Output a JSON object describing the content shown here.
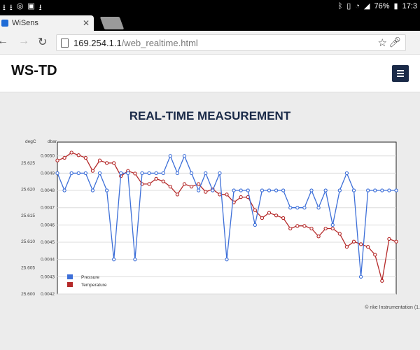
{
  "statusbar": {
    "left_icons": [
      "download-icon",
      "download-icon",
      "whatsapp-icon",
      "image-icon",
      "download-icon"
    ],
    "battery": "76%",
    "time": "17:3"
  },
  "tab": {
    "title": "WiSens"
  },
  "address": {
    "host": "169.254.1.1",
    "path": "/web_realtime.html"
  },
  "site": {
    "brand": "WS-TD"
  },
  "page": {
    "heading": "REAL-TIME MEASUREMENT",
    "credit": "© nke Instrumentation (1."
  },
  "chart_data": {
    "type": "line",
    "left_axis_unit": "degC",
    "right_axis_unit": "dbar",
    "left_ticks": [
      "25.600",
      "25.605",
      "25.610",
      "25.615",
      "25.620",
      "25.625"
    ],
    "right_ticks": [
      "0.0042",
      "0.0043",
      "0.0044",
      "0.0045",
      "0.0046",
      "0.0047",
      "0.0048",
      "0.0049",
      "0.0050"
    ],
    "temp_range": [
      25.6,
      25.629
    ],
    "pres_range": [
      0.0042,
      0.00508
    ],
    "legend_position": "bottom-left",
    "series": [
      {
        "name": "Pressure",
        "axis": "dbar",
        "color": "#3d6fd8",
        "values": [
          0.0049,
          0.0048,
          0.0049,
          0.0049,
          0.0049,
          0.0048,
          0.0049,
          0.0048,
          0.0044,
          0.0049,
          0.0049,
          0.0044,
          0.0049,
          0.0049,
          0.0049,
          0.0049,
          0.005,
          0.0049,
          0.005,
          0.0049,
          0.0048,
          0.0049,
          0.0048,
          0.0049,
          0.0044,
          0.0048,
          0.0048,
          0.0048,
          0.0046,
          0.0048,
          0.0048,
          0.0048,
          0.0048,
          0.0047,
          0.0047,
          0.0047,
          0.0048,
          0.0047,
          0.0048,
          0.0046,
          0.0048,
          0.0049,
          0.0048,
          0.0043,
          0.0048,
          0.0048,
          0.0048,
          0.0048,
          0.0048
        ]
      },
      {
        "name": "Temperature",
        "axis": "degC",
        "color": "#b52a2a",
        "values": [
          25.6255,
          25.626,
          25.627,
          25.6265,
          25.626,
          25.6235,
          25.6255,
          25.625,
          25.625,
          25.6225,
          25.6235,
          25.623,
          25.621,
          25.621,
          25.622,
          25.6215,
          25.6205,
          25.619,
          25.621,
          25.6205,
          25.621,
          25.6195,
          25.62,
          25.619,
          25.619,
          25.6175,
          25.6185,
          25.6185,
          25.616,
          25.6145,
          25.6155,
          25.615,
          25.6145,
          25.6125,
          25.613,
          25.613,
          25.6125,
          25.611,
          25.6125,
          25.6125,
          25.6115,
          25.609,
          25.61,
          25.6095,
          25.609,
          25.6075,
          25.6025,
          25.6105,
          25.61
        ]
      }
    ]
  }
}
